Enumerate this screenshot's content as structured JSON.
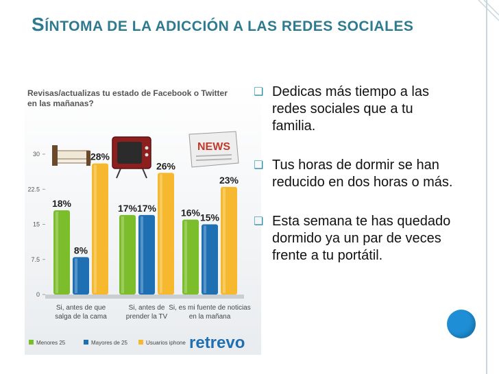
{
  "slide": {
    "title_first_letter": "S",
    "title_rest": "ÍNTOMA DE LA ADICCIÓN A LAS REDES SOCIALES"
  },
  "bullets": [
    {
      "text": "Dedicas más tiempo a las redes sociales que a tu familia."
    },
    {
      "text": "Tus horas de dormir se han reducido en dos horas o más."
    },
    {
      "text": "Esta semana te has quedado dormido ya un par de veces frente a tu portátil."
    }
  ],
  "chart_data": {
    "type": "bar",
    "title": "Revisas/actualizas tu estado de Facebook o Twitter en las mañanas?",
    "categories": [
      "Si, antes de que salga de la cama",
      "Si, antes de prender la TV",
      "Si, es mi fuente de noticias en la mañana"
    ],
    "series": [
      {
        "name": "Menores 25",
        "values": [
          18,
          17,
          16
        ],
        "color": "#7cbd2c"
      },
      {
        "name": "Mayores de 25",
        "values": [
          8,
          17,
          15
        ],
        "color": "#1f6fb3"
      },
      {
        "name": "Usuarios iphone",
        "values": [
          28,
          26,
          23
        ],
        "color": "#f5b82e"
      }
    ],
    "yticks": [
      "0",
      "7.5",
      "15",
      "22.5",
      "30"
    ],
    "ylim": [
      0,
      30
    ],
    "value_suffix": "%",
    "legend_position": "bottom",
    "brand": "retrevo",
    "images": [
      "bed-icon",
      "tv-icon",
      "newspaper-icon"
    ]
  }
}
